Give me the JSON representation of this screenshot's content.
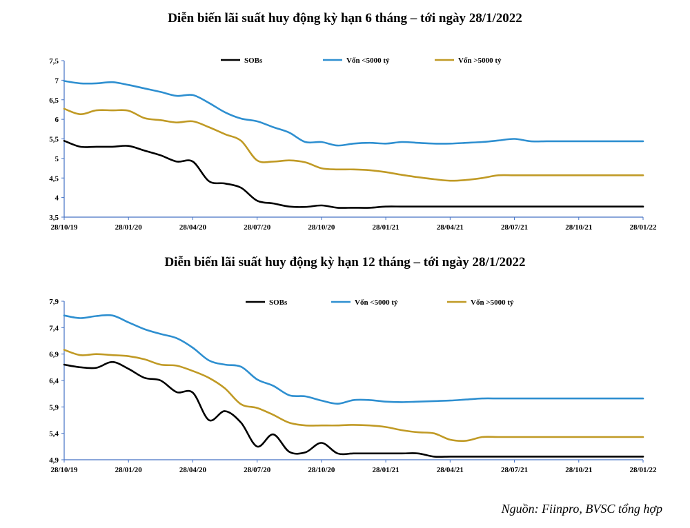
{
  "colors": {
    "sobs": "#000000",
    "small": "#2e8fd0",
    "large": "#c09a25",
    "axis": "#4472c4"
  },
  "chart_data": [
    {
      "type": "line",
      "title": "Diễn biến lãi suất huy động kỳ hạn 6 tháng – tới ngày 28/1/2022",
      "xlabel": "",
      "ylabel": "",
      "ylim": [
        3.5,
        7.5
      ],
      "yticks": [
        "7,5",
        "7",
        "6,5",
        "6",
        "5,5",
        "5",
        "4,5",
        "4",
        "3,5"
      ],
      "xticks": [
        "28/10/19",
        "28/01/20",
        "28/04/20",
        "28/07/20",
        "28/10/20",
        "28/01/21",
        "28/04/21",
        "28/07/21",
        "28/10/21",
        "28/01/22"
      ],
      "legend_position": "top",
      "x": [
        0,
        0.25,
        0.5,
        0.75,
        1,
        1.25,
        1.5,
        1.75,
        2,
        2.25,
        2.5,
        2.75,
        3,
        3.25,
        3.5,
        3.75,
        4,
        4.25,
        4.5,
        4.75,
        5,
        5.25,
        5.5,
        5.75,
        6,
        6.25,
        6.5,
        6.75,
        7,
        7.25,
        7.5,
        7.75,
        8,
        8.25,
        8.5,
        8.75,
        9
      ],
      "series": [
        {
          "name": "SOBs",
          "color_key": "sobs",
          "values": [
            5.45,
            5.3,
            5.3,
            5.3,
            5.32,
            5.2,
            5.08,
            4.92,
            4.92,
            4.42,
            4.36,
            4.25,
            3.92,
            3.85,
            3.77,
            3.76,
            3.8,
            3.74,
            3.74,
            3.74,
            3.77,
            3.77,
            3.77,
            3.77,
            3.77,
            3.77,
            3.77,
            3.77,
            3.77,
            3.77,
            3.77,
            3.77,
            3.77,
            3.77,
            3.77,
            3.77,
            3.77
          ]
        },
        {
          "name": "Vốn <5000 tỷ",
          "color_key": "small",
          "values": [
            6.98,
            6.92,
            6.92,
            6.95,
            6.88,
            6.79,
            6.7,
            6.6,
            6.62,
            6.42,
            6.18,
            6.02,
            5.95,
            5.8,
            5.66,
            5.42,
            5.42,
            5.33,
            5.38,
            5.4,
            5.38,
            5.42,
            5.4,
            5.38,
            5.38,
            5.4,
            5.42,
            5.46,
            5.5,
            5.44,
            5.44,
            5.44,
            5.44,
            5.44,
            5.44,
            5.44,
            5.44
          ]
        },
        {
          "name": "Vốn >5000 tỷ",
          "color_key": "large",
          "values": [
            6.27,
            6.13,
            6.23,
            6.23,
            6.22,
            6.03,
            5.98,
            5.92,
            5.95,
            5.8,
            5.62,
            5.45,
            4.95,
            4.92,
            4.95,
            4.9,
            4.75,
            4.72,
            4.72,
            4.7,
            4.65,
            4.58,
            4.52,
            4.47,
            4.43,
            4.45,
            4.5,
            4.57,
            4.57,
            4.57,
            4.57,
            4.57,
            4.57,
            4.57,
            4.57,
            4.57,
            4.57
          ]
        }
      ]
    },
    {
      "type": "line",
      "title": "Diễn biến lãi suất huy động kỳ hạn 12 tháng – tới ngày 28/1/2022",
      "xlabel": "",
      "ylabel": "",
      "ylim": [
        4.9,
        7.9
      ],
      "yticks": [
        "7,9",
        "7,4",
        "6,9",
        "6,4",
        "5,9",
        "5,4",
        "4,9"
      ],
      "xticks": [
        "28/10/19",
        "28/01/20",
        "28/04/20",
        "28/07/20",
        "28/10/20",
        "28/01/21",
        "28/04/21",
        "28/07/21",
        "28/10/21",
        "28/01/22"
      ],
      "legend_position": "top",
      "x": [
        0,
        0.25,
        0.5,
        0.75,
        1,
        1.25,
        1.5,
        1.75,
        2,
        2.25,
        2.5,
        2.75,
        3,
        3.25,
        3.5,
        3.75,
        4,
        4.25,
        4.5,
        4.75,
        5,
        5.25,
        5.5,
        5.75,
        6,
        6.25,
        6.5,
        6.75,
        7,
        7.25,
        7.5,
        7.75,
        8,
        8.25,
        8.5,
        8.75,
        9
      ],
      "series": [
        {
          "name": "SOBs",
          "color_key": "sobs",
          "values": [
            6.7,
            6.65,
            6.64,
            6.75,
            6.62,
            6.45,
            6.4,
            6.18,
            6.17,
            5.65,
            5.82,
            5.6,
            5.15,
            5.38,
            5.05,
            5.04,
            5.22,
            5.02,
            5.02,
            5.02,
            5.02,
            5.02,
            5.02,
            4.96,
            4.96,
            4.96,
            4.96,
            4.96,
            4.96,
            4.96,
            4.96,
            4.96,
            4.96,
            4.96,
            4.96,
            4.96,
            4.96
          ]
        },
        {
          "name": "Vốn <5000 tỷ",
          "color_key": "small",
          "values": [
            7.63,
            7.58,
            7.62,
            7.63,
            7.5,
            7.37,
            7.28,
            7.2,
            7.02,
            6.78,
            6.7,
            6.66,
            6.42,
            6.3,
            6.12,
            6.1,
            6.02,
            5.96,
            6.03,
            6.03,
            6.0,
            5.99,
            6.0,
            6.01,
            6.02,
            6.04,
            6.06,
            6.06,
            6.06,
            6.06,
            6.06,
            6.06,
            6.06,
            6.06,
            6.06,
            6.06,
            6.06
          ]
        },
        {
          "name": "Vốn >5000 tỷ",
          "color_key": "large",
          "values": [
            6.98,
            6.88,
            6.9,
            6.88,
            6.86,
            6.8,
            6.7,
            6.68,
            6.58,
            6.45,
            6.25,
            5.95,
            5.88,
            5.75,
            5.6,
            5.55,
            5.55,
            5.55,
            5.56,
            5.55,
            5.52,
            5.46,
            5.42,
            5.4,
            5.28,
            5.26,
            5.33,
            5.33,
            5.33,
            5.33,
            5.33,
            5.33,
            5.33,
            5.33,
            5.33,
            5.33,
            5.33
          ]
        }
      ]
    }
  ],
  "source": "Nguồn: Fiinpro, BVSC tổng hợp"
}
